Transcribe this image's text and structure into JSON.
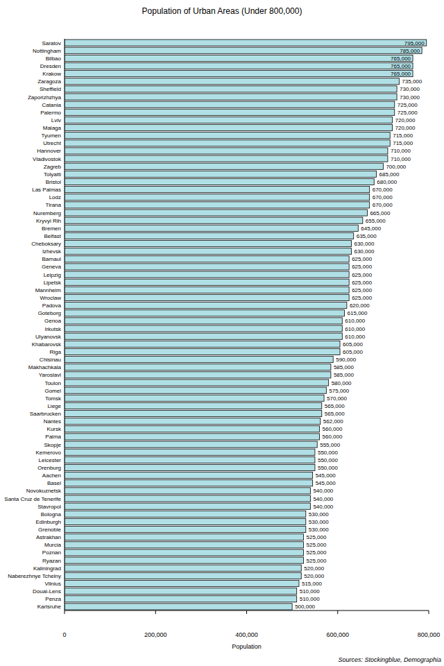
{
  "chart_data": {
    "type": "bar",
    "orientation": "horizontal",
    "title": "Population of Urban Areas (Under 800,000)",
    "x_label": "Population",
    "source": "Sources: Stockingblue, Demographia",
    "categories": [
      "Saratov",
      "Nottingham",
      "Bilbao",
      "Dresden",
      "Krakow",
      "Zaragoza",
      "Sheffield",
      "Zaporizhzhya",
      "Catania",
      "Palermo",
      "Lviv",
      "Malaga",
      "Tyumen",
      "Utrecht",
      "Hannover",
      "Vladivostok",
      "Zagreb",
      "Tolyatti",
      "Bristol",
      "Las Palmas",
      "Lodz",
      "Tirana",
      "Nuremberg",
      "Kryvyi Rih",
      "Bremen",
      "Belfast",
      "Cheboksary",
      "Izhevsk",
      "Barnaul",
      "Geneva",
      "Leipzig",
      "Lipetsk",
      "Mannheim",
      "Wroclaw",
      "Padova",
      "Goteborg",
      "Genoa",
      "Irkutsk",
      "Ulyanovsk",
      "Khabarovsk",
      "Riga",
      "Chisinau",
      "Makhachkala",
      "Yaroslavl",
      "Toulon",
      "Gomel",
      "Tomsk",
      "Liege",
      "Saarbrucken",
      "Nantes",
      "Kursk",
      "Palma",
      "Skopje",
      "Kemerovo",
      "Leicester",
      "Orenburg",
      "Aachen",
      "Basel",
      "Novokuznetsk",
      "Santa Cruz de Tenerife",
      "Stavropol",
      "Bologna",
      "Edinburgh",
      "Grenoble",
      "Astrakhan",
      "Murcia",
      "Poznan",
      "Ryazan",
      "Kaliningrad",
      "Naberezhnye Tchelny",
      "Vilnius",
      "Douai-Lens",
      "Penza",
      "Karlsruhe"
    ],
    "values": [
      795000,
      785000,
      765000,
      765000,
      765000,
      735000,
      730000,
      730000,
      725000,
      725000,
      720000,
      720000,
      715000,
      715000,
      710000,
      710000,
      700000,
      685000,
      680000,
      670000,
      670000,
      670000,
      665000,
      655000,
      645000,
      635000,
      630000,
      630000,
      625000,
      625000,
      625000,
      625000,
      625000,
      625000,
      620000,
      615000,
      610000,
      610000,
      610000,
      605000,
      605000,
      590000,
      585000,
      585000,
      580000,
      575000,
      570000,
      565000,
      565000,
      562000,
      560000,
      560000,
      555000,
      550000,
      550000,
      550000,
      545000,
      545000,
      540000,
      540000,
      540000,
      530000,
      530000,
      530000,
      525000,
      525000,
      525000,
      525000,
      520000,
      520000,
      515000,
      510000,
      510000,
      500000
    ],
    "value_labels": [
      "795,000",
      "785,000",
      "765,000",
      "765,000",
      "765,000",
      "735,000",
      "730,000",
      "730,000",
      "725,000",
      "725,000",
      "720,000",
      "720,000",
      "715,000",
      "715,000",
      "710,000",
      "710,000",
      "700,000",
      "685,000",
      "680,000",
      "670,000",
      "670,000",
      "670,000",
      "665,000",
      "655,000",
      "645,000",
      "635,000",
      "630,000",
      "630,000",
      "625,000",
      "625,000",
      "625,000",
      "625,000",
      "625,000",
      "625,000",
      "620,000",
      "615,000",
      "610,000",
      "610,000",
      "610,000",
      "605,000",
      "605,000",
      "590,000",
      "585,000",
      "585,000",
      "580,000",
      "575,000",
      "570,000",
      "565,000",
      "565,000",
      "562,000",
      "560,000",
      "560,000",
      "555,000",
      "550,000",
      "550,000",
      "550,000",
      "545,000",
      "545,000",
      "540,000",
      "540,000",
      "540,000",
      "530,000",
      "530,000",
      "530,000",
      "525,000",
      "525,000",
      "525,000",
      "525,000",
      "520,000",
      "520,000",
      "515,000",
      "510,000",
      "510,000",
      "500,000"
    ],
    "color": "#b0e0e6",
    "xlim": [
      0,
      800000
    ],
    "xticks": [
      0,
      {
        "value": 200000,
        "label": "200,000"
      },
      {
        "value": 400000,
        "label": "400,000"
      },
      {
        "value": 600000,
        "label": "600,000"
      },
      {
        "value": 800000,
        "label": "800,000"
      }
    ],
    "grid": false,
    "data_labels": true
  }
}
